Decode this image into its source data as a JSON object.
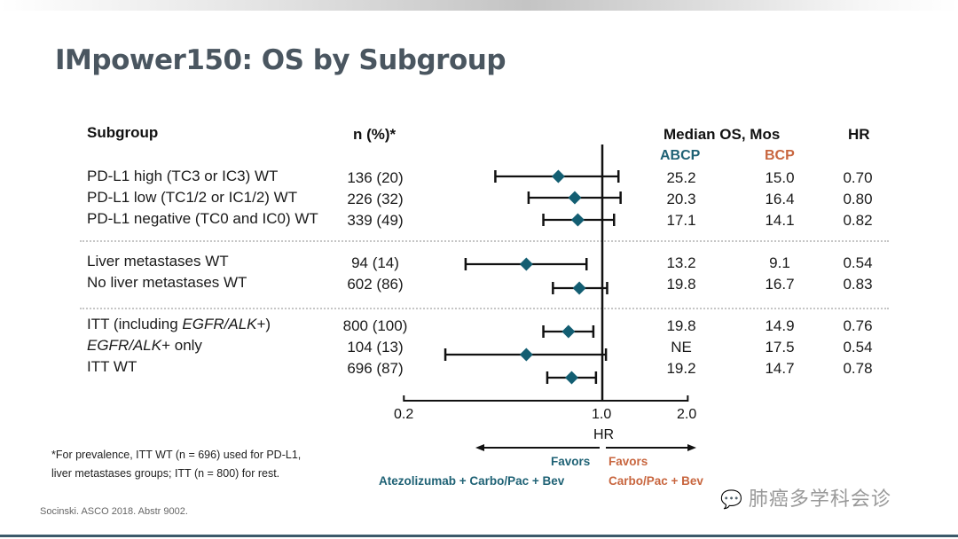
{
  "title": "IMpower150: OS by Subgroup",
  "headers": {
    "subgroup": "Subgroup",
    "n": "n (%)*",
    "median_os": "Median OS, Mos",
    "hr": "HR",
    "abcp": "ABCP",
    "bcp": "BCP"
  },
  "colors": {
    "abcp": "#1f6275",
    "bcp": "#c8663f",
    "marker": "#135e72",
    "title": "#4a5660"
  },
  "rows": [
    {
      "label": "PD-L1 high (TC3 or IC3) WT",
      "n": "136 (20)",
      "abcp": "25.2",
      "bcp": "15.0",
      "hr": "0.70"
    },
    {
      "label": "PD-L1 low (TC1/2 or IC1/2) WT",
      "n": "226 (32)",
      "abcp": "20.3",
      "bcp": "16.4",
      "hr": "0.80"
    },
    {
      "label": "PD-L1 negative (TC0 and IC0) WT",
      "n": "339 (49)",
      "abcp": "17.1",
      "bcp": "14.1",
      "hr": "0.82"
    },
    {
      "label": "Liver metastases WT",
      "n": "94 (14)",
      "abcp": "13.2",
      "bcp": "9.1",
      "hr": "0.54"
    },
    {
      "label": "No liver metastases WT",
      "n": "602 (86)",
      "abcp": "19.8",
      "bcp": "16.7",
      "hr": "0.83"
    },
    {
      "label_pre": "ITT (including ",
      "label_it": "EGFR/ALK",
      "label_post": "+)",
      "n": "800 (100)",
      "abcp": "19.8",
      "bcp": "14.9",
      "hr": "0.76"
    },
    {
      "label_pre": "",
      "label_it": "EGFR/ALK",
      "label_post": "+ only",
      "n": "104 (13)",
      "abcp": "NE",
      "bcp": "17.5",
      "hr": "0.54"
    },
    {
      "label": "ITT WT",
      "n": "696 (87)",
      "abcp": "19.2",
      "bcp": "14.7",
      "hr": "0.78"
    }
  ],
  "axis": {
    "label": "HR",
    "tick_labels": [
      "0.2",
      "1.0",
      "2.0"
    ]
  },
  "favors": {
    "left_line1": "Favors",
    "left_line2": "Atezolizumab + Carbo/Pac + Bev",
    "right_line1": "Favors",
    "right_line2": "Carbo/Pac + Bev"
  },
  "footnote": {
    "line1": "*For prevalence, ITT WT (n = 696) used for PD-L1,",
    "line2": "liver metastases groups; ITT (n = 800) for rest."
  },
  "source": "Socinski. ASCO 2018. Abstr 9002.",
  "watermark": "肺癌多学科会诊",
  "chart_data": {
    "type": "scatter",
    "subtype": "forest_plot",
    "title": "IMpower150: OS by Subgroup",
    "xlabel": "HR",
    "xscale": "log",
    "xlim": [
      0.2,
      2.0
    ],
    "xticks": [
      0.2,
      1.0,
      2.0
    ],
    "reference_line": 1.0,
    "categories": [
      "PD-L1 high (TC3 or IC3) WT",
      "PD-L1 low (TC1/2 or IC1/2) WT",
      "PD-L1 negative (TC0 and IC0) WT",
      "Liver metastases WT",
      "No liver metastases WT",
      "ITT (including EGFR/ALK+)",
      "EGFR/ALK+ only",
      "ITT WT"
    ],
    "groups": [
      [
        0,
        1,
        2
      ],
      [
        3,
        4
      ],
      [
        5,
        6,
        7
      ]
    ],
    "hr": [
      0.7,
      0.8,
      0.82,
      0.54,
      0.83,
      0.76,
      0.54,
      0.78
    ],
    "ci_lower": [
      0.42,
      0.55,
      0.62,
      0.33,
      0.67,
      0.62,
      0.28,
      0.64
    ],
    "ci_upper": [
      1.14,
      1.16,
      1.1,
      0.88,
      1.04,
      0.93,
      1.03,
      0.95
    ],
    "legend": [
      "Favors Atezolizumab + Carbo/Pac + Bev",
      "Favors Carbo/Pac + Bev"
    ]
  }
}
